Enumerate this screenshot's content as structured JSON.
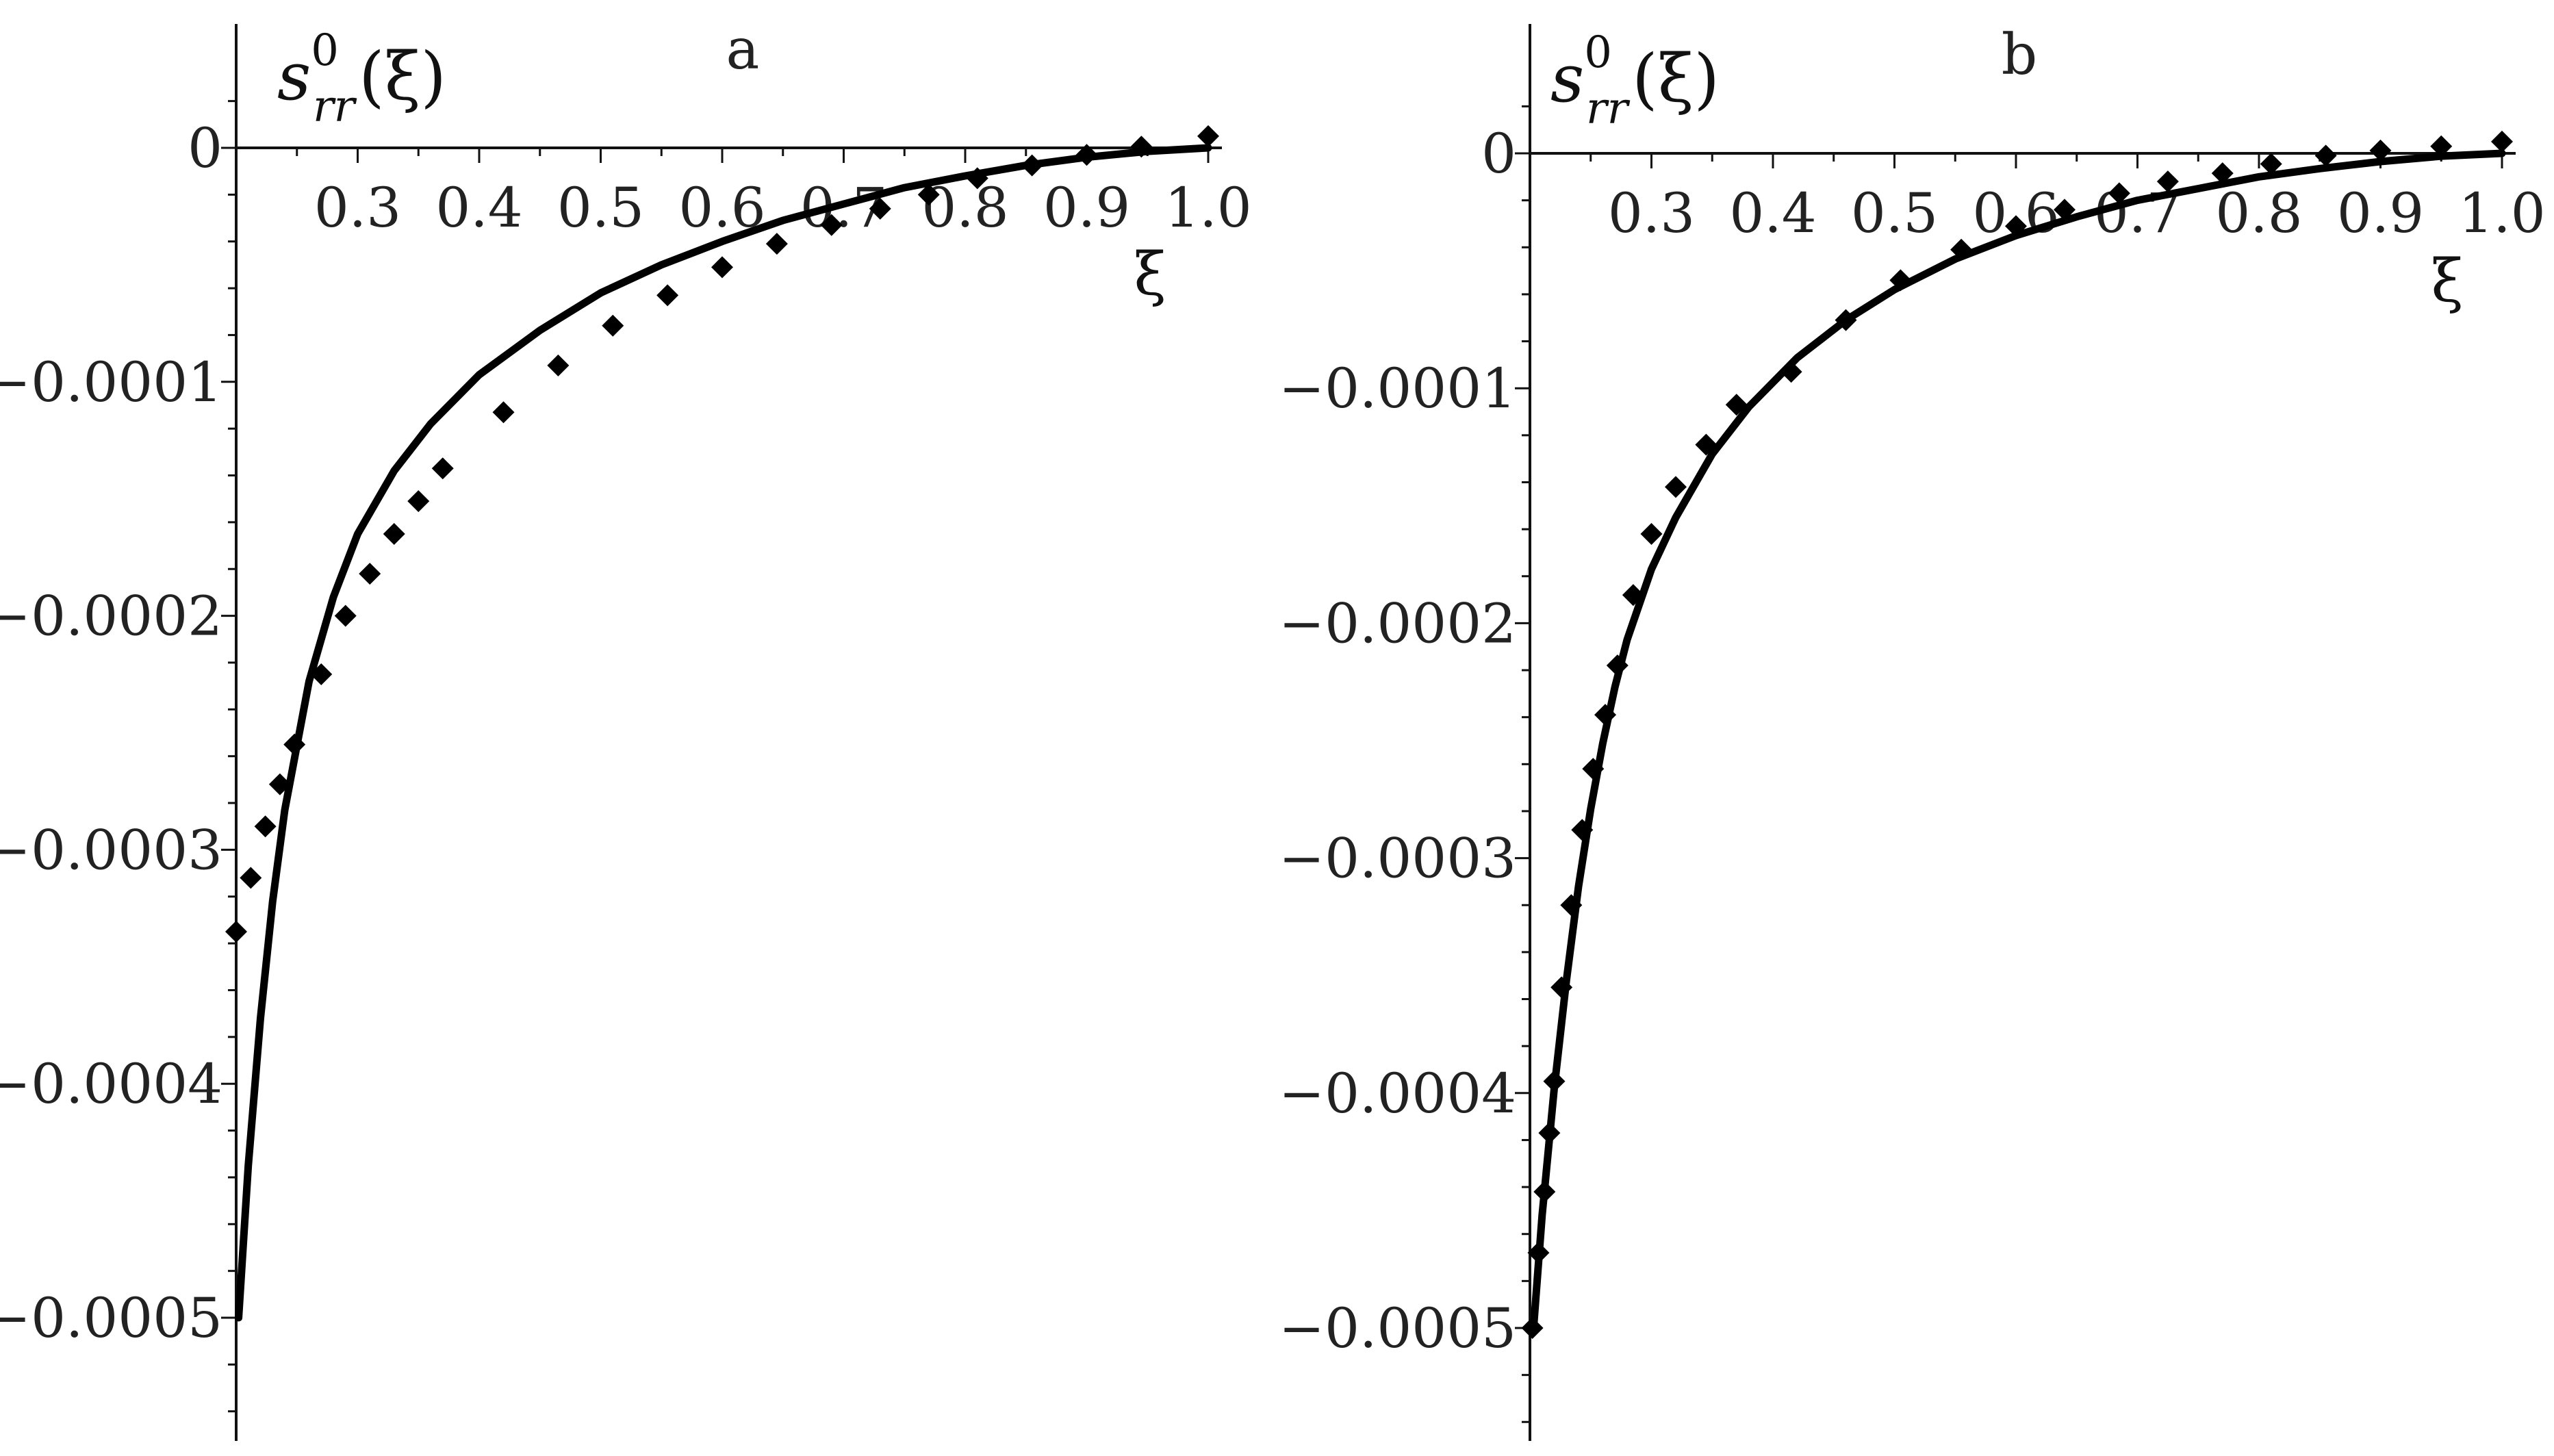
{
  "chart_data": [
    {
      "type": "line",
      "panel_label": "a",
      "ylabel": {
        "symbol": "s",
        "superscript": "0",
        "subscript": "rr",
        "argument": "(ξ)"
      },
      "xlabel": "ξ",
      "xlim": [
        0.2,
        1.0
      ],
      "ylim": [
        -0.00055,
        3e-05
      ],
      "xticks": [
        0.3,
        0.4,
        0.5,
        0.6,
        0.7,
        0.8,
        0.9,
        1.0
      ],
      "xtick_labels": [
        "0.3",
        "0.4",
        "0.5",
        "0.6",
        "0.7",
        "0.8",
        "0.9",
        "1.0"
      ],
      "yticks": [
        0,
        -0.0001,
        -0.0002,
        -0.0003,
        -0.0004,
        -0.0005
      ],
      "ytick_labels": [
        "0",
        "-0.0001",
        "-0.0002",
        "-0.0003",
        "-0.0004",
        "-0.0005"
      ],
      "series": [
        {
          "style": "line",
          "x": [
            0.202,
            0.21,
            0.22,
            0.23,
            0.24,
            0.26,
            0.28,
            0.3,
            0.33,
            0.36,
            0.4,
            0.45,
            0.5,
            0.55,
            0.6,
            0.65,
            0.7,
            0.75,
            0.8,
            0.85,
            0.9,
            0.95,
            1.0
          ],
          "y": [
            -0.0005,
            -0.000435,
            -0.000372,
            -0.000322,
            -0.000283,
            -0.000228,
            -0.000192,
            -0.000165,
            -0.000138,
            -0.000118,
            -9.7e-05,
            -7.8e-05,
            -6.2e-05,
            -5e-05,
            -4e-05,
            -3.1e-05,
            -2.4e-05,
            -1.7e-05,
            -1.2e-05,
            -7.5e-06,
            -4e-06,
            -1.5e-06,
            0.0
          ]
        },
        {
          "style": "markers",
          "marker": "diamond",
          "x": [
            0.2,
            0.212,
            0.224,
            0.236,
            0.248,
            0.27,
            0.29,
            0.31,
            0.33,
            0.35,
            0.37,
            0.42,
            0.465,
            0.51,
            0.555,
            0.6,
            0.645,
            0.69,
            0.73,
            0.77,
            0.81,
            0.855,
            0.9,
            0.945,
            1.0
          ],
          "y": [
            -0.000335,
            -0.000312,
            -0.00029,
            -0.000272,
            -0.000255,
            -0.000225,
            -0.0002,
            -0.000182,
            -0.000165,
            -0.000151,
            -0.000137,
            -0.000113,
            -9.3e-05,
            -7.6e-05,
            -6.3e-05,
            -5.1e-05,
            -4.1e-05,
            -3.3e-05,
            -2.6e-05,
            -2e-05,
            -1.3e-05,
            -7.5e-06,
            -3e-06,
            5e-07,
            5e-06
          ]
        }
      ]
    },
    {
      "type": "line",
      "panel_label": "b",
      "ylabel": {
        "symbol": "s",
        "superscript": "0",
        "subscript": "rr",
        "argument": "(ξ)"
      },
      "xlabel": "ξ",
      "xlim": [
        0.2,
        1.0
      ],
      "ylim": [
        -0.00055,
        3e-05
      ],
      "xticks": [
        0.3,
        0.4,
        0.5,
        0.6,
        0.7,
        0.8,
        0.9,
        1.0
      ],
      "xtick_labels": [
        "0.3",
        "0.4",
        "0.5",
        "0.6",
        "0.7",
        "0.8",
        "0.9",
        "1.0"
      ],
      "yticks": [
        0,
        -0.0001,
        -0.0002,
        -0.0003,
        -0.0004,
        -0.0005
      ],
      "ytick_labels": [
        "0",
        "-0.0001",
        "-0.0002",
        "-0.0003",
        "-0.0004",
        "-0.0005"
      ],
      "series": [
        {
          "style": "line",
          "x": [
            0.203,
            0.21,
            0.22,
            0.23,
            0.24,
            0.25,
            0.26,
            0.27,
            0.28,
            0.3,
            0.32,
            0.35,
            0.38,
            0.42,
            0.46,
            0.5,
            0.55,
            0.6,
            0.65,
            0.7,
            0.75,
            0.8,
            0.85,
            0.9,
            0.95,
            1.0
          ],
          "y": [
            -0.0005,
            -0.000452,
            -0.000398,
            -0.000352,
            -0.000312,
            -0.000279,
            -0.000251,
            -0.000227,
            -0.000207,
            -0.000177,
            -0.000155,
            -0.000128,
            -0.000108,
            -8.7e-05,
            -7.1e-05,
            -5.8e-05,
            -4.5e-05,
            -3.5e-05,
            -2.7e-05,
            -2e-05,
            -1.5e-05,
            -1e-05,
            -6.5e-06,
            -3.5e-06,
            -1.2e-06,
            0.0
          ]
        },
        {
          "style": "markers",
          "marker": "diamond",
          "x": [
            0.202,
            0.207,
            0.212,
            0.216,
            0.22,
            0.226,
            0.234,
            0.243,
            0.252,
            0.262,
            0.272,
            0.285,
            0.3,
            0.32,
            0.345,
            0.37,
            0.415,
            0.46,
            0.505,
            0.555,
            0.6,
            0.64,
            0.685,
            0.725,
            0.77,
            0.81,
            0.855,
            0.9,
            0.95,
            1.0
          ],
          "y": [
            -0.0005,
            -0.000468,
            -0.000442,
            -0.000417,
            -0.000395,
            -0.000355,
            -0.00032,
            -0.000288,
            -0.000262,
            -0.000239,
            -0.000218,
            -0.000188,
            -0.000162,
            -0.000142,
            -0.000124,
            -0.000107,
            -9.3e-05,
            -7.1e-05,
            -5.4e-05,
            -4.1e-05,
            -3.1e-05,
            -2.4e-05,
            -1.7e-05,
            -1.2e-05,
            -8.5e-06,
            -4.5e-06,
            -1e-06,
            1.2e-06,
            3e-06,
            5e-06
          ]
        }
      ]
    }
  ]
}
